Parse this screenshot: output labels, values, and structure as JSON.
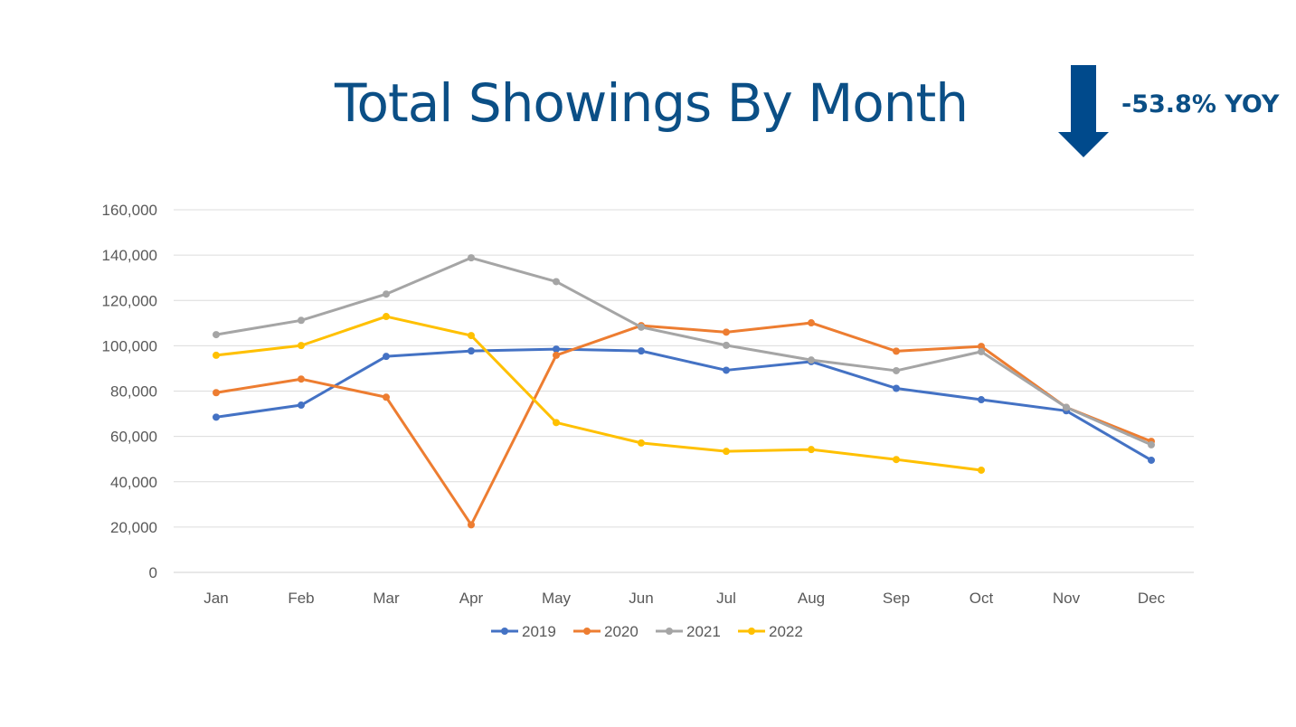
{
  "title": "Total Showings By Month",
  "annotation": {
    "text": "-53.8% YOY",
    "arrow_icon": "down-arrow-icon",
    "color": "#004a8c"
  },
  "chart_data": {
    "type": "line",
    "title": "",
    "xlabel": "",
    "ylabel": "",
    "categories": [
      "Jan",
      "Feb",
      "Mar",
      "Apr",
      "May",
      "Jun",
      "Jul",
      "Aug",
      "Sep",
      "Oct",
      "Nov",
      "Dec"
    ],
    "ylim": [
      0,
      160000
    ],
    "yticks": [
      0,
      20000,
      40000,
      60000,
      80000,
      100000,
      120000,
      140000,
      160000
    ],
    "ytick_labels": [
      "0",
      "20,000",
      "40,000",
      "60,000",
      "80,000",
      "100,000",
      "120,000",
      "140,000",
      "160,000"
    ],
    "grid": true,
    "legend_position": "bottom",
    "series": [
      {
        "name": "2019",
        "color": "#4472c4",
        "values": [
          68500,
          73800,
          95300,
          97700,
          98500,
          97700,
          89200,
          93000,
          81200,
          76200,
          71300,
          49500
        ]
      },
      {
        "name": "2020",
        "color": "#ed7d31",
        "values": [
          79300,
          85300,
          77300,
          21000,
          95800,
          108900,
          106000,
          110100,
          97600,
          99700,
          72800,
          57800
        ]
      },
      {
        "name": "2021",
        "color": "#a5a5a5",
        "values": [
          104900,
          111200,
          122800,
          138800,
          128300,
          108200,
          100200,
          93700,
          89000,
          97400,
          72800,
          56300
        ]
      },
      {
        "name": "2022",
        "color": "#ffc000",
        "values": [
          95800,
          100100,
          112900,
          104500,
          66100,
          57100,
          53400,
          54200,
          49800,
          45100,
          null,
          null
        ]
      }
    ]
  }
}
